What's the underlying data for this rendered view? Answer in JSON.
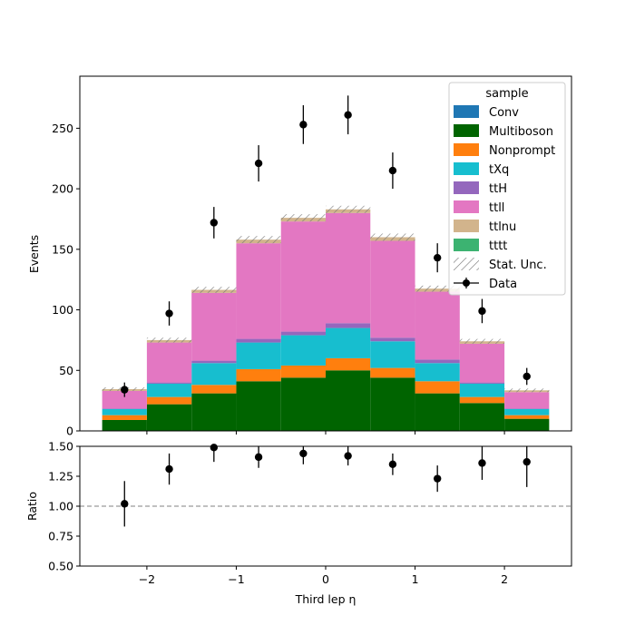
{
  "chart_data": [
    {
      "type": "bar",
      "stacked": true,
      "ylabel": "Events",
      "ylim": [
        0,
        293
      ],
      "yticks": [
        0,
        50,
        100,
        150,
        200,
        250
      ],
      "xlim": [
        -2.75,
        2.75
      ],
      "bin_edges": [
        -2.5,
        -2.0,
        -1.5,
        -1.0,
        -0.5,
        0.0,
        0.5,
        1.0,
        1.5,
        2.0,
        2.5
      ],
      "colors": {
        "Conv": "#1f77b4",
        "Multiboson": "#006400",
        "Nonprompt": "#ff7f0e",
        "tXq": "#17becf",
        "ttH": "#9467bd",
        "ttll": "#e377c2",
        "ttlnu": "#d2b48c",
        "tttt": "#3cb371",
        "data": "#000000",
        "unc_hatch": "#777777"
      },
      "series": [
        {
          "name": "Conv",
          "values": [
            0,
            0,
            0,
            0,
            0,
            0,
            0,
            0,
            0,
            0
          ]
        },
        {
          "name": "Multiboson",
          "values": [
            9,
            22,
            31,
            41,
            44,
            50,
            44,
            31,
            23,
            10
          ]
        },
        {
          "name": "Nonprompt",
          "values": [
            4,
            6,
            7,
            10,
            10,
            10,
            8,
            10,
            5,
            3
          ]
        },
        {
          "name": "tXq",
          "values": [
            5,
            11,
            18,
            22,
            25,
            25,
            22,
            15,
            11,
            5
          ]
        },
        {
          "name": "ttH",
          "values": [
            0.5,
            1,
            2,
            3,
            3,
            4,
            3,
            3,
            1,
            0.5
          ]
        },
        {
          "name": "ttll",
          "values": [
            14.5,
            33,
            56,
            79,
            91,
            91,
            80,
            56,
            32,
            13.5
          ]
        },
        {
          "name": "ttlnu",
          "values": [
            1.5,
            2,
            2.5,
            3,
            3,
            3,
            3,
            2.5,
            2,
            1.5
          ]
        },
        {
          "name": "tttt",
          "values": [
            0,
            0,
            0,
            0,
            0,
            0,
            0,
            0,
            0,
            0
          ]
        }
      ],
      "stat_unc": [
        1.5,
        2,
        2.5,
        3,
        3,
        3,
        3,
        2.5,
        2,
        1.5
      ],
      "data_points": {
        "x": [
          -2.25,
          -1.75,
          -1.25,
          -0.75,
          -0.25,
          0.25,
          0.75,
          1.25,
          1.75,
          2.25
        ],
        "y": [
          34,
          97,
          172,
          221,
          253,
          261,
          215,
          143,
          99,
          45
        ],
        "err": [
          6,
          10,
          13,
          15,
          16,
          16,
          15,
          12,
          10,
          7
        ]
      },
      "legend": {
        "title": "sample",
        "position": "top-right",
        "entries": [
          "Conv",
          "Multiboson",
          "Nonprompt",
          "tXq",
          "ttH",
          "ttll",
          "ttlnu",
          "tttt",
          "Stat. Unc.",
          "Data"
        ]
      }
    },
    {
      "type": "scatter",
      "ylabel": "Ratio",
      "xlabel": "Third lep η",
      "ylim": [
        0.5,
        1.5
      ],
      "yticks": [
        "0.50",
        "0.75",
        "1.00",
        "1.25",
        "1.50"
      ],
      "xlim": [
        -2.75,
        2.75
      ],
      "xticks": [
        "−2",
        "−1",
        "0",
        "1",
        "2"
      ],
      "reference_line": 1.0,
      "points": {
        "x": [
          -2.25,
          -1.75,
          -1.25,
          -0.75,
          -0.25,
          0.25,
          0.75,
          1.25,
          1.75,
          2.25
        ],
        "y": [
          1.02,
          1.31,
          1.49,
          1.41,
          1.44,
          1.42,
          1.35,
          1.23,
          1.36,
          1.37
        ],
        "err": [
          0.19,
          0.13,
          0.12,
          0.09,
          0.09,
          0.08,
          0.09,
          0.11,
          0.14,
          0.21
        ]
      }
    }
  ]
}
